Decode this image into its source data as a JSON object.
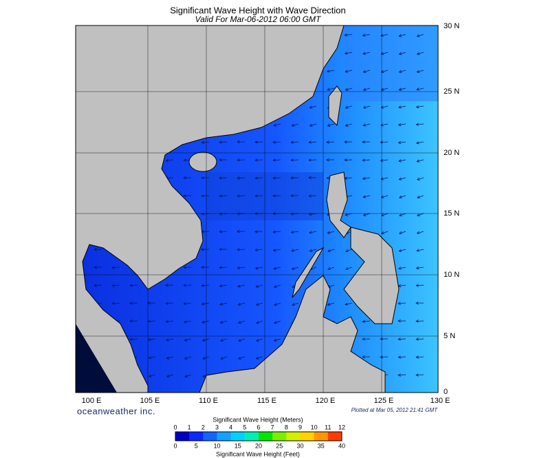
{
  "header": {
    "title": "Significant Wave Height with Wave Direction",
    "subtitle": "Valid For Mar-06-2012 06:00 GMT"
  },
  "map": {
    "lat_labels": [
      "30 N",
      "25 N",
      "20 N",
      "15 N",
      "10 N",
      "5 N",
      "0"
    ],
    "lon_labels": [
      "100 E",
      "105 E",
      "110 E",
      "115 E",
      "120 E",
      "125 E",
      "130 E"
    ],
    "brand": "oceanweather inc.",
    "plotted": "Plotted at Mar 05, 2012 21:41 GMT"
  },
  "colorbar": {
    "title_top": "Significant Wave Height (Meters)",
    "meters": [
      "0",
      "1",
      "2",
      "3",
      "4",
      "5",
      "6",
      "7",
      "8",
      "9",
      "10",
      "11",
      "12"
    ],
    "feet": [
      "0",
      "5",
      "10",
      "15",
      "20",
      "25",
      "30",
      "35",
      "40"
    ],
    "title_bottom": "Significant Wave Height (Feet)"
  }
}
